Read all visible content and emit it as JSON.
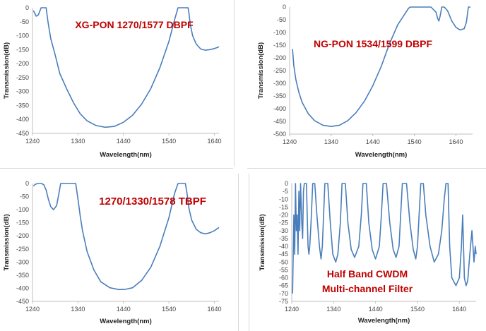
{
  "colors": {
    "line": "#4a7ebb",
    "title": "#c00000",
    "axis": "#bfbfbf"
  },
  "chart_data": [
    {
      "type": "line",
      "title": "XG-PON 1270/1577 DBPF",
      "xlabel": "Wavelength(nm)",
      "ylabel": "Transmission(dB)",
      "xlim": [
        1240,
        1650
      ],
      "ylim": [
        -450,
        0
      ],
      "xticks": [
        1240,
        1340,
        1440,
        1540,
        1640
      ],
      "yticks": [
        0,
        -50,
        -100,
        -150,
        -200,
        -250,
        -300,
        -350,
        -400,
        -450
      ],
      "series": [
        {
          "x": [
            1242,
            1248,
            1253,
            1259,
            1264,
            1267,
            1270,
            1274,
            1280,
            1290,
            1300,
            1315,
            1330,
            1345,
            1360,
            1380,
            1400,
            1420,
            1440,
            1460,
            1480,
            1500,
            1520,
            1540,
            1552,
            1560,
            1565,
            1568,
            1570,
            1572,
            1574,
            1577,
            1580,
            1582,
            1584,
            1587,
            1592,
            1600,
            1610,
            1620,
            1630,
            1640,
            1650
          ],
          "y": [
            -10,
            -30,
            -25,
            0,
            0,
            0,
            0,
            -50,
            -110,
            -170,
            -235,
            -290,
            -340,
            -380,
            -405,
            -422,
            -428,
            -425,
            -410,
            -385,
            -345,
            -290,
            -215,
            -120,
            -45,
            0,
            0,
            0,
            0,
            0,
            0,
            0,
            0,
            0,
            -20,
            -60,
            -100,
            -130,
            -148,
            -152,
            -150,
            -146,
            -140
          ]
        }
      ]
    },
    {
      "type": "line",
      "title": "NG-PON 1534/1599 DBPF",
      "xlabel": "Wavelength(nm)",
      "ylabel": "Transmission(dB)",
      "xlim": [
        1240,
        1680
      ],
      "ylim": [
        -500,
        0
      ],
      "xticks": [
        1240,
        1340,
        1440,
        1540,
        1640
      ],
      "yticks": [
        0,
        -50,
        -100,
        -150,
        -200,
        -250,
        -300,
        -350,
        -400,
        -450,
        -500
      ],
      "series": [
        {
          "x": [
            1247,
            1250,
            1255,
            1262,
            1270,
            1285,
            1300,
            1320,
            1340,
            1360,
            1380,
            1400,
            1420,
            1440,
            1460,
            1480,
            1500,
            1510,
            1520,
            1526,
            1530,
            1534,
            1540,
            1560,
            1580,
            1592,
            1596,
            1599,
            1602,
            1606,
            1612,
            1620,
            1630,
            1640,
            1650,
            1660,
            1665,
            1668,
            1670,
            1675
          ],
          "y": [
            -165,
            -230,
            -285,
            -335,
            -375,
            -420,
            -447,
            -465,
            -470,
            -465,
            -447,
            -415,
            -370,
            -310,
            -235,
            -145,
            -70,
            -45,
            -20,
            -5,
            0,
            0,
            0,
            0,
            0,
            -20,
            -45,
            -55,
            -35,
            0,
            0,
            -15,
            -55,
            -80,
            -90,
            -85,
            -60,
            -25,
            0,
            0
          ]
        }
      ]
    },
    {
      "type": "line",
      "title": "1270/1330/1578 TBPF",
      "xlabel": "Wavelength(nm)",
      "ylabel": "Transmission(dB)",
      "xlim": [
        1240,
        1650
      ],
      "ylim": [
        -450,
        0
      ],
      "xticks": [
        1240,
        1340,
        1440,
        1540,
        1640
      ],
      "yticks": [
        0,
        -50,
        -100,
        -150,
        -200,
        -250,
        -300,
        -350,
        -400,
        -450
      ],
      "series": [
        {
          "x": [
            1242,
            1246,
            1252,
            1260,
            1265,
            1270,
            1275,
            1280,
            1286,
            1293,
            1298,
            1302,
            1305,
            1310,
            1315,
            1320,
            1326,
            1330,
            1335,
            1340,
            1345,
            1350,
            1360,
            1375,
            1390,
            1410,
            1430,
            1445,
            1460,
            1480,
            1500,
            1520,
            1540,
            1552,
            1560,
            1565,
            1568,
            1572,
            1576,
            1580,
            1584,
            1590,
            1600,
            1610,
            1620,
            1630,
            1640,
            1650
          ],
          "y": [
            -10,
            -3,
            0,
            0,
            -5,
            -25,
            -60,
            -88,
            -100,
            -85,
            -40,
            0,
            0,
            0,
            0,
            0,
            0,
            0,
            0,
            -60,
            -125,
            -180,
            -260,
            -330,
            -375,
            -398,
            -405,
            -404,
            -398,
            -370,
            -320,
            -240,
            -130,
            -40,
            0,
            0,
            0,
            0,
            0,
            -40,
            -95,
            -140,
            -175,
            -188,
            -192,
            -188,
            -180,
            -168
          ]
        }
      ]
    },
    {
      "type": "line",
      "title": "Half Band CWDM Multi-channel Filter",
      "xlabel": "Wavelength(nm)",
      "ylabel": "Transmission(dB)",
      "xlim": [
        1240,
        1680
      ],
      "ylim": [
        -75,
        0
      ],
      "xticks": [
        1240,
        1340,
        1440,
        1540,
        1640
      ],
      "yticks": [
        0,
        -5,
        -10,
        -15,
        -20,
        -25,
        -30,
        -35,
        -40,
        -45,
        -50,
        -55,
        -60,
        -65,
        -70,
        -75
      ],
      "series": [
        {
          "x": [
            1242,
            1245,
            1247,
            1249,
            1251,
            1253,
            1255,
            1257,
            1259,
            1261,
            1264,
            1266,
            1268,
            1270,
            1273,
            1275,
            1277,
            1279,
            1281,
            1283,
            1286,
            1290,
            1295,
            1300,
            1306,
            1310,
            1313,
            1316,
            1319,
            1322,
            1326,
            1332,
            1338,
            1345,
            1350,
            1356,
            1360,
            1364,
            1368,
            1374,
            1382,
            1390,
            1400,
            1406,
            1410,
            1414,
            1418,
            1424,
            1432,
            1440,
            1449,
            1454,
            1458,
            1462,
            1466,
            1474,
            1482,
            1489,
            1496,
            1500,
            1504,
            1508,
            1514,
            1522,
            1530,
            1536,
            1540,
            1544,
            1548,
            1551,
            1554,
            1560,
            1570,
            1580,
            1590,
            1598,
            1604,
            1608,
            1611,
            1613,
            1615,
            1617,
            1622,
            1632,
            1640,
            1645,
            1648,
            1652,
            1656,
            1660,
            1665,
            1670,
            1675,
            1678,
            1680
          ],
          "y": [
            -70,
            -20,
            -45,
            0,
            -30,
            -20,
            -45,
            -5,
            -30,
            0,
            -25,
            -35,
            -5,
            0,
            0,
            0,
            -20,
            -40,
            -45,
            -40,
            -25,
            0,
            0,
            -20,
            -40,
            -48,
            -40,
            -20,
            0,
            0,
            0,
            -25,
            -45,
            -50,
            -45,
            -25,
            0,
            0,
            0,
            -25,
            -42,
            -47,
            -40,
            -20,
            0,
            0,
            0,
            -25,
            -42,
            -48,
            -40,
            -20,
            0,
            0,
            0,
            -25,
            -42,
            -47,
            -40,
            -20,
            0,
            0,
            0,
            -25,
            -42,
            -48,
            -40,
            -20,
            0,
            0,
            0,
            -20,
            -40,
            -50,
            -45,
            -30,
            -10,
            0,
            0,
            0,
            -20,
            -40,
            -60,
            -65,
            -60,
            -40,
            -20,
            -60,
            -65,
            -62,
            -45,
            -30,
            -50,
            -40,
            -45
          ]
        }
      ]
    }
  ]
}
